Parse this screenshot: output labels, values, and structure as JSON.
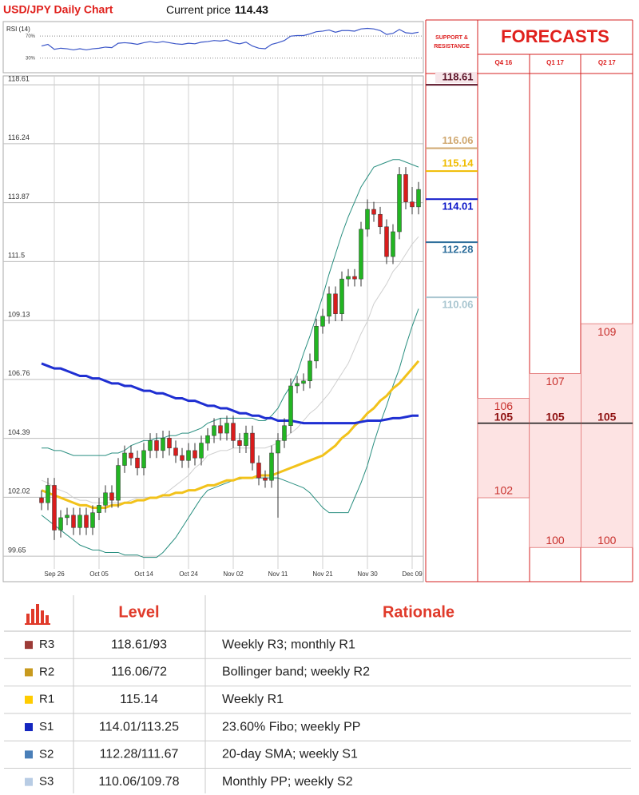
{
  "chart_data": [
    {
      "type": "candlestick",
      "title": "USD/JPY Daily Chart",
      "current_price_label": "Current price",
      "current_price": 114.43,
      "categories": [
        null,
        null,
        "Sep 26",
        null,
        null,
        null,
        null,
        null,
        null,
        "Oct 05",
        null,
        null,
        null,
        null,
        null,
        null,
        "Oct 14",
        null,
        null,
        null,
        null,
        null,
        null,
        "Oct 24",
        null,
        null,
        null,
        null,
        null,
        null,
        "Nov 02",
        null,
        null,
        null,
        null,
        null,
        null,
        "Nov 11",
        null,
        null,
        null,
        null,
        null,
        null,
        "Nov 21",
        null,
        null,
        null,
        null,
        null,
        null,
        "Nov 30",
        null,
        null,
        null,
        null,
        null,
        null,
        "Dec 09",
        null
      ],
      "open": [
        102.0,
        101.8,
        102.5,
        100.7,
        101.2,
        101.3,
        100.8,
        101.3,
        100.8,
        101.4,
        101.7,
        102.2,
        101.9,
        103.3,
        103.8,
        103.6,
        103.2,
        103.9,
        104.3,
        103.9,
        104.4,
        104.0,
        103.7,
        103.5,
        103.9,
        103.6,
        104.2,
        104.5,
        104.9,
        104.6,
        105.0,
        104.3,
        104.1,
        104.6,
        103.4,
        102.8,
        102.7,
        103.8,
        104.3,
        104.9,
        106.5,
        106.6,
        106.7,
        107.5,
        108.9,
        109.3,
        110.2,
        109.4,
        110.8,
        110.9,
        110.8,
        112.8,
        113.6,
        113.4,
        112.9,
        111.7,
        112.7,
        115.0,
        113.9,
        113.7
      ],
      "high": [
        102.3,
        102.8,
        102.8,
        101.5,
        101.6,
        101.6,
        101.6,
        101.6,
        101.7,
        102.0,
        102.5,
        102.5,
        103.6,
        104.1,
        104.1,
        103.9,
        104.2,
        104.6,
        104.6,
        104.7,
        104.7,
        104.3,
        104.0,
        104.2,
        104.2,
        104.5,
        104.8,
        105.2,
        105.2,
        105.3,
        105.3,
        104.6,
        104.9,
        104.9,
        103.7,
        103.1,
        104.1,
        104.6,
        105.2,
        106.8,
        106.9,
        107.0,
        107.8,
        109.2,
        109.6,
        110.5,
        110.5,
        111.1,
        111.2,
        111.2,
        113.1,
        114.0,
        113.9,
        113.7,
        113.2,
        113.0,
        115.3,
        115.3,
        114.5,
        114.7
      ],
      "low": [
        101.5,
        101.5,
        100.3,
        100.4,
        100.9,
        100.5,
        100.5,
        100.5,
        100.5,
        101.1,
        101.4,
        101.6,
        101.6,
        103.0,
        103.3,
        102.9,
        102.9,
        103.6,
        103.6,
        103.6,
        103.7,
        103.4,
        103.2,
        103.2,
        103.3,
        103.3,
        103.9,
        104.2,
        104.3,
        104.3,
        104.0,
        103.8,
        103.8,
        103.1,
        102.5,
        102.4,
        102.4,
        101.2,
        104.0,
        104.6,
        106.2,
        106.3,
        106.4,
        107.2,
        108.6,
        109.0,
        109.1,
        109.1,
        110.5,
        110.5,
        110.5,
        112.5,
        113.1,
        112.6,
        111.4,
        111.4,
        112.4,
        113.6,
        113.4,
        113.4
      ],
      "close": [
        101.8,
        102.5,
        100.7,
        101.2,
        101.3,
        100.8,
        101.3,
        100.8,
        101.4,
        101.7,
        102.2,
        101.9,
        103.3,
        103.8,
        103.6,
        103.2,
        103.9,
        104.3,
        103.9,
        104.4,
        104.0,
        103.7,
        103.5,
        103.9,
        103.6,
        104.2,
        104.5,
        104.9,
        104.6,
        105.0,
        104.3,
        104.1,
        104.6,
        103.4,
        102.8,
        102.7,
        103.8,
        104.3,
        104.9,
        106.5,
        106.6,
        106.7,
        107.5,
        108.9,
        109.3,
        110.2,
        109.4,
        110.8,
        110.9,
        110.8,
        112.8,
        113.6,
        113.4,
        112.9,
        111.7,
        112.7,
        115.0,
        113.9,
        113.7,
        114.4
      ],
      "up_color": "#22b522",
      "down_color": "#d91c1c",
      "lines": [
        {
          "color": "#cfcfcf",
          "values": [
            102.7,
            102.6,
            102.4,
            102.3,
            102.2,
            102.0,
            101.9,
            101.9,
            101.8,
            101.8,
            101.8,
            101.8,
            101.8,
            101.8,
            101.9,
            102.0,
            102.0,
            102.0,
            102.0,
            102.1,
            102.3,
            102.5,
            102.7,
            102.9,
            103.2,
            103.4,
            103.7,
            103.8,
            103.9,
            103.9,
            104.0,
            104.0,
            104.0,
            104.0,
            104.0,
            104.0,
            104.1,
            104.2,
            104.4,
            104.6,
            104.8,
            105.1,
            105.4,
            105.6,
            105.9,
            106.2,
            106.6,
            107.0,
            107.4,
            108.0,
            108.6,
            109.1,
            109.8,
            110.2,
            110.6,
            111.1,
            111.4,
            111.8,
            112.2,
            112.5
          ]
        },
        {
          "color": "#2a8f80",
          "values": [
            101.3,
            101.1,
            100.9,
            100.7,
            100.5,
            100.3,
            100.1,
            100.0,
            99.9,
            99.9,
            99.8,
            99.8,
            99.8,
            99.7,
            99.7,
            99.7,
            99.6,
            99.6,
            99.6,
            99.8,
            100.1,
            100.4,
            100.8,
            101.2,
            101.6,
            102.0,
            102.3,
            102.4,
            102.5,
            102.6,
            102.7,
            102.75,
            102.8,
            102.8,
            102.8,
            102.8,
            102.8,
            102.8,
            102.7,
            102.6,
            102.5,
            102.4,
            102.2,
            101.9,
            101.6,
            101.4,
            101.4,
            101.4,
            101.4,
            102.0,
            102.6,
            103.3,
            104.2,
            105.0,
            105.7,
            106.5,
            107.2,
            108.1,
            108.9,
            109.6
          ]
        },
        {
          "color": "#2a8f80",
          "values": [
            104.0,
            104.0,
            103.9,
            103.9,
            103.8,
            103.7,
            103.7,
            103.7,
            103.7,
            103.7,
            103.7,
            103.8,
            103.8,
            103.9,
            104.1,
            104.2,
            104.3,
            104.3,
            104.4,
            104.4,
            104.5,
            104.5,
            104.6,
            104.6,
            104.7,
            104.8,
            105.0,
            105.1,
            105.2,
            105.2,
            105.2,
            105.2,
            105.2,
            105.2,
            105.1,
            105.1,
            105.3,
            105.6,
            106.1,
            106.5,
            107.0,
            107.8,
            108.5,
            109.3,
            110.1,
            111.0,
            111.8,
            112.6,
            113.3,
            113.9,
            114.5,
            114.9,
            115.3,
            115.4,
            115.5,
            115.6,
            115.6,
            115.5,
            115.4,
            115.3
          ]
        },
        {
          "color": "#f2c21a",
          "values": [
            102.3,
            102.2,
            102.1,
            102.0,
            101.9,
            101.8,
            101.7,
            101.7,
            101.6,
            101.6,
            101.6,
            101.7,
            101.7,
            101.8,
            101.8,
            101.9,
            101.9,
            102.0,
            102.0,
            102.1,
            102.1,
            102.2,
            102.2,
            102.3,
            102.3,
            102.4,
            102.5,
            102.5,
            102.6,
            102.7,
            102.7,
            102.8,
            102.8,
            102.8,
            102.9,
            102.9,
            102.9,
            103.0,
            103.1,
            103.2,
            103.3,
            103.4,
            103.5,
            103.6,
            103.7,
            103.9,
            104.1,
            104.4,
            104.6,
            104.9,
            105.1,
            105.4,
            105.6,
            105.9,
            106.1,
            106.4,
            106.6,
            106.9,
            107.2,
            107.5
          ]
        },
        {
          "color": "#1f2fd2",
          "values": [
            107.4,
            107.3,
            107.2,
            107.2,
            107.1,
            107.0,
            106.9,
            106.9,
            106.8,
            106.8,
            106.7,
            106.6,
            106.6,
            106.5,
            106.5,
            106.4,
            106.3,
            106.3,
            106.2,
            106.2,
            106.1,
            106.0,
            106.0,
            105.9,
            105.9,
            105.8,
            105.7,
            105.7,
            105.6,
            105.6,
            105.5,
            105.4,
            105.4,
            105.3,
            105.3,
            105.2,
            105.2,
            105.1,
            105.1,
            105.1,
            105.05,
            105.0,
            105.0,
            105.0,
            105.0,
            105.0,
            105.0,
            105.0,
            105.0,
            105.0,
            105.05,
            105.1,
            105.1,
            105.1,
            105.15,
            105.2,
            105.2,
            105.25,
            105.3,
            105.3
          ]
        }
      ],
      "ylim": [
        99.14,
        118.87
      ],
      "yticks": [
        118.61,
        116.24,
        113.87,
        111.5,
        109.13,
        106.76,
        104.39,
        102.02,
        99.65
      ],
      "grid": true,
      "levels": [
        {
          "value": 118.61,
          "color": "#5c1428"
        },
        {
          "value": 116.06,
          "color": "#d0a870"
        },
        {
          "value": 115.14,
          "color": "#f0bc00"
        },
        {
          "value": 114.01,
          "color": "#0a14c8"
        },
        {
          "value": 112.28,
          "color": "#2f6f9c"
        },
        {
          "value": 110.06,
          "color": "#a9c6d0"
        }
      ]
    },
    {
      "type": "line",
      "title": "RSI (14)",
      "color": "#3a55c8",
      "values": [
        52,
        55,
        46,
        48,
        47,
        45,
        47,
        45,
        47,
        48,
        50,
        49,
        57,
        58,
        57,
        55,
        58,
        60,
        58,
        60,
        58,
        56,
        55,
        57,
        56,
        59,
        60,
        62,
        61,
        63,
        58,
        56,
        59,
        52,
        48,
        47,
        55,
        58,
        62,
        70,
        71,
        71,
        74,
        78,
        79,
        81,
        77,
        80,
        80,
        79,
        83,
        84,
        83,
        80,
        73,
        75,
        82,
        76,
        75,
        77
      ],
      "ylim": [
        5,
        92
      ],
      "yticks": [
        {
          "value": 70,
          "label": "70%"
        },
        {
          "value": 30,
          "label": "30%"
        }
      ]
    }
  ],
  "forecasts": {
    "title": "FORECASTS",
    "subtitle": "SUPPORT & RESISTANCE",
    "fill": "#fde3e3",
    "columns": [
      {
        "label": "Q4 16",
        "high": 106,
        "mid": 105,
        "low": 102
      },
      {
        "label": "Q1 17",
        "high": 107,
        "mid": 105,
        "low": 100
      },
      {
        "label": "Q2 17",
        "high": 109,
        "mid": 105,
        "low": 100
      }
    ]
  },
  "table": {
    "headers": [
      "Level",
      "Rationale"
    ],
    "rows": [
      {
        "name": "R3",
        "color": "#9c3b37",
        "level": "118.61/93",
        "rationale": "Weekly R3; monthly R1"
      },
      {
        "name": "R2",
        "color": "#c89a1e",
        "level": "116.06/72",
        "rationale": "Bollinger band; weekly R2"
      },
      {
        "name": "R1",
        "color": "#ffcc00",
        "level": "115.14",
        "rationale": "Weekly R1"
      },
      {
        "name": "S1",
        "color": "#1426c0",
        "level": "114.01/113.25",
        "rationale": "23.60% Fibo; weekly PP"
      },
      {
        "name": "S2",
        "color": "#4a7fb8",
        "level": "112.28/111.67",
        "rationale": "20-day SMA; weekly S1"
      },
      {
        "name": "S3",
        "color": "#b8cce4",
        "level": "110.06/109.78",
        "rationale": "Monthly PP; weekly S2"
      }
    ]
  }
}
